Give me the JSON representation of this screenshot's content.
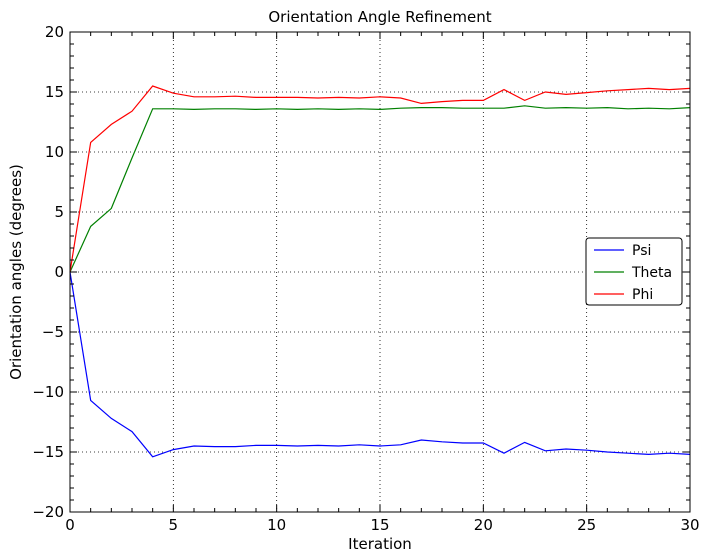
{
  "chart_data": {
    "type": "line",
    "title": "Orientation Angle Refinement",
    "xlabel": "Iteration",
    "ylabel": "Orientation angles (degrees)",
    "xlim": [
      0,
      30
    ],
    "ylim": [
      -20,
      20
    ],
    "x_ticks": [
      0,
      5,
      10,
      15,
      20,
      25,
      30
    ],
    "y_ticks": [
      -20,
      -15,
      -10,
      -5,
      0,
      5,
      10,
      15,
      20
    ],
    "x_tick_labels": [
      "0",
      "5",
      "10",
      "15",
      "20",
      "25",
      "30"
    ],
    "y_tick_labels": [
      "−20",
      "−15",
      "−10",
      "−5",
      "0",
      "5",
      "10",
      "15",
      "20"
    ],
    "grid": true,
    "legend_position": "right",
    "x": [
      0,
      1,
      2,
      3,
      4,
      5,
      6,
      7,
      8,
      9,
      10,
      11,
      12,
      13,
      14,
      15,
      16,
      17,
      18,
      19,
      20,
      21,
      22,
      23,
      24,
      25,
      26,
      27,
      28,
      29,
      30
    ],
    "series": [
      {
        "name": "Psi",
        "color": "#0000ff",
        "values": [
          0,
          -10.7,
          -12.2,
          -13.3,
          -15.4,
          -14.8,
          -14.5,
          -14.55,
          -14.55,
          -14.45,
          -14.45,
          -14.5,
          -14.45,
          -14.5,
          -14.4,
          -14.5,
          -14.4,
          -14.0,
          -14.15,
          -14.25,
          -14.25,
          -15.1,
          -14.2,
          -14.9,
          -14.75,
          -14.85,
          -15.0,
          -15.1,
          -15.2,
          -15.1,
          -15.2
        ]
      },
      {
        "name": "Theta",
        "color": "#008000",
        "values": [
          0,
          3.8,
          5.3,
          9.5,
          13.6,
          13.6,
          13.55,
          13.6,
          13.6,
          13.55,
          13.6,
          13.55,
          13.6,
          13.55,
          13.6,
          13.55,
          13.65,
          13.7,
          13.7,
          13.65,
          13.65,
          13.65,
          13.85,
          13.65,
          13.7,
          13.65,
          13.7,
          13.6,
          13.65,
          13.6,
          13.7
        ]
      },
      {
        "name": "Phi",
        "color": "#ff0000",
        "values": [
          0,
          10.8,
          12.3,
          13.4,
          15.5,
          14.9,
          14.6,
          14.6,
          14.65,
          14.55,
          14.55,
          14.55,
          14.5,
          14.55,
          14.5,
          14.6,
          14.5,
          14.05,
          14.2,
          14.3,
          14.3,
          15.2,
          14.3,
          15.0,
          14.8,
          14.95,
          15.1,
          15.2,
          15.3,
          15.2,
          15.3
        ]
      }
    ]
  }
}
